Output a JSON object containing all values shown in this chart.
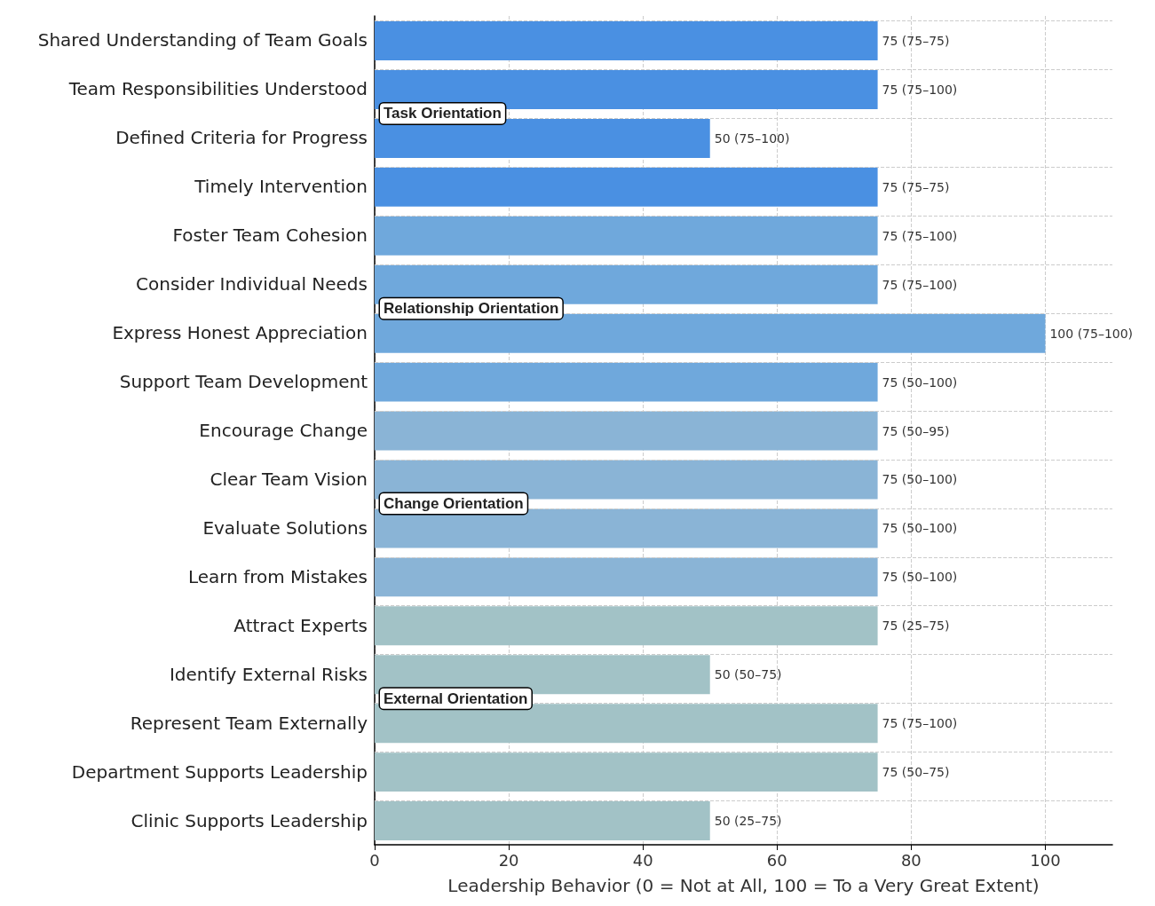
{
  "chart_data": {
    "type": "bar",
    "orientation": "horizontal",
    "xlabel": "Leadership Behavior (0 = Not at All, 100 = To a Very Great Extent)",
    "categories": [
      "Shared Understanding of Team Goals",
      "Team Responsibilities Understood",
      "Defined Criteria for Progress",
      "Timely Intervention",
      "Foster Team Cohesion",
      "Consider Individual Needs",
      "Express Honest Appreciation",
      "Support Team Development",
      "Encourage Change",
      "Clear Team Vision",
      "Evaluate Solutions",
      "Learn from Mistakes",
      "Attract Experts",
      "Identify External Risks",
      "Represent Team Externally",
      "Department Supports Leadership",
      "Clinic Supports Leadership"
    ],
    "values": [
      75,
      75,
      50,
      75,
      75,
      75,
      100,
      75,
      75,
      75,
      75,
      75,
      75,
      50,
      75,
      75,
      50
    ],
    "value_labels": [
      "75 (75–75)",
      "75 (75–100)",
      "50 (75–100)",
      "75 (75–75)",
      "75 (75–100)",
      "75 (75–100)",
      "100 (75–100)",
      "75 (50–100)",
      "75 (50–95)",
      "75 (50–100)",
      "75 (50–100)",
      "75 (50–100)",
      "75 (25–75)",
      "50 (50–75)",
      "75 (75–100)",
      "75 (50–75)",
      "50 (25–75)"
    ],
    "colors": [
      "#4a90e2",
      "#4a90e2",
      "#4a90e2",
      "#4a90e2",
      "#6fa8dc",
      "#6fa8dc",
      "#6fa8dc",
      "#6fa8dc",
      "#8ab4d6",
      "#8ab4d6",
      "#8ab4d6",
      "#8ab4d6",
      "#a2c2c6",
      "#a2c2c6",
      "#a2c2c6",
      "#a2c2c6",
      "#a2c2c6"
    ],
    "xlim": [
      0,
      110
    ],
    "xticks": [
      0,
      20,
      40,
      60,
      80,
      100
    ],
    "grid": true,
    "annotations": [
      {
        "text": "Task Orientation",
        "y": "Defined Criteria for Progress"
      },
      {
        "text": "Relationship Orientation",
        "y": "Express Honest Appreciation"
      },
      {
        "text": "Change Orientation",
        "y": "Evaluate Solutions"
      },
      {
        "text": "External Orientation",
        "y": "Represent Team Externally"
      }
    ]
  }
}
